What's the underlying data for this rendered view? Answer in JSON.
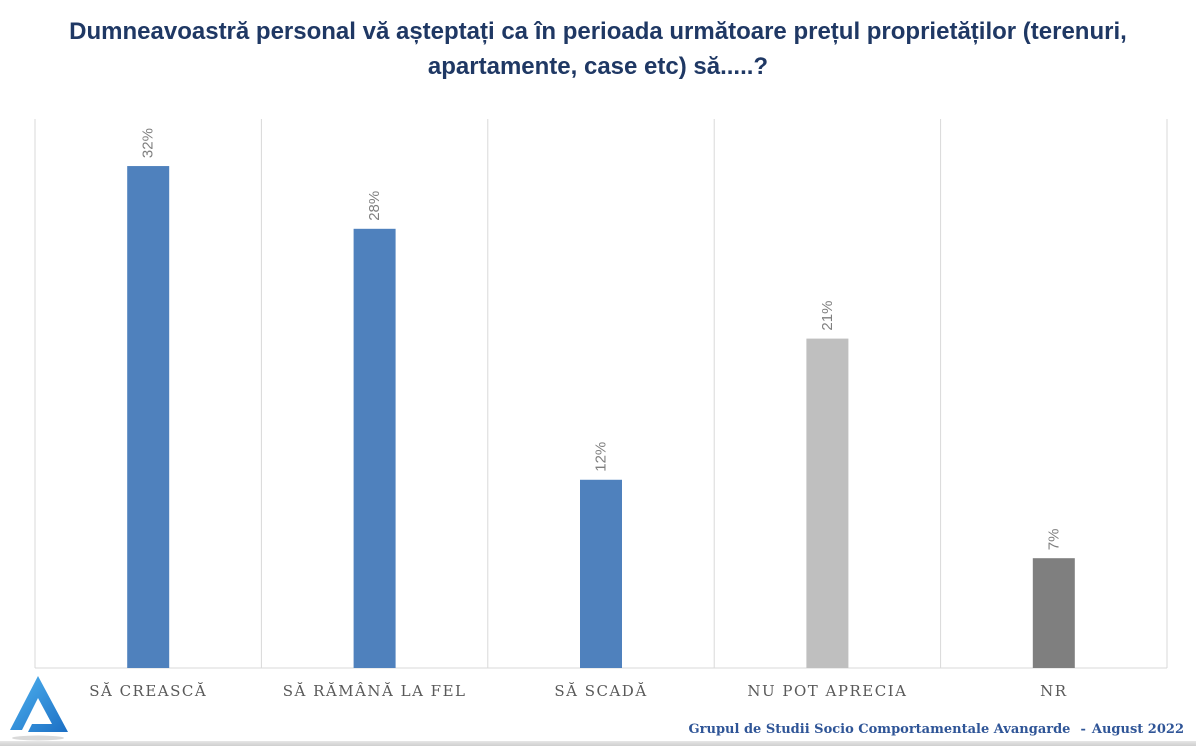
{
  "title": {
    "line1": "Dumneavoastră personal vă așteptați ca în perioada următoare prețul proprietăților (terenuri,",
    "line2": "apartamente, case etc) să.....?"
  },
  "chart_data": {
    "type": "bar",
    "categories": [
      "SĂ CREASCĂ",
      "SĂ RĂMÂNĂ LA FEL",
      "SĂ SCADĂ",
      "NU POT APRECIA",
      "NR"
    ],
    "values": [
      32,
      28,
      12,
      21,
      7
    ],
    "value_labels": [
      "32%",
      "28%",
      "12%",
      "21%",
      "7%"
    ],
    "colors": [
      "#4F81BD",
      "#4F81BD",
      "#4F81BD",
      "#BFBFBF",
      "#7F7F7F"
    ],
    "ylim": [
      0,
      35
    ],
    "grid": "vertical category separators",
    "legend": "none"
  },
  "footer": {
    "source": "Grupul de Studii Socio Comportamentale Avangarde",
    "date": "August 2022"
  },
  "logo": {
    "icon": "avangarde-logo-icon",
    "color": "#2E9BE6"
  }
}
